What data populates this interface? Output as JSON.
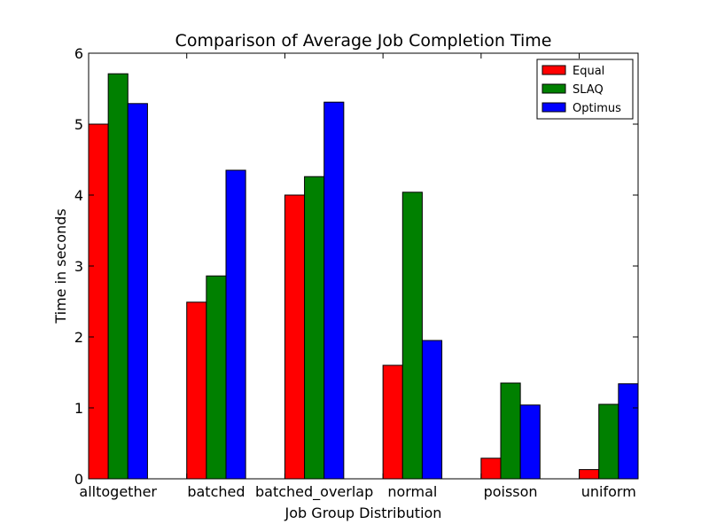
{
  "chart_data": {
    "type": "bar",
    "title": "Comparison of Average Job Completion Time",
    "xlabel": "Job Group Distribution",
    "ylabel": "Time in seconds",
    "categories": [
      "alltogether",
      "batched",
      "batched_overlap",
      "normal",
      "poisson",
      "uniform"
    ],
    "series": [
      {
        "name": "Equal",
        "color": "#ff0000",
        "values": [
          5.0,
          2.49,
          4.0,
          1.6,
          0.29,
          0.13
        ]
      },
      {
        "name": "SLAQ",
        "color": "#008000",
        "values": [
          5.71,
          2.86,
          4.26,
          4.04,
          1.35,
          1.05
        ]
      },
      {
        "name": "Optimus",
        "color": "#0000ff",
        "values": [
          5.29,
          4.35,
          5.31,
          1.95,
          1.04,
          1.34
        ]
      }
    ],
    "ylim": [
      0,
      6
    ],
    "yticks": [
      0,
      1,
      2,
      3,
      4,
      5,
      6
    ],
    "legend": "top-right",
    "grid": false
  }
}
